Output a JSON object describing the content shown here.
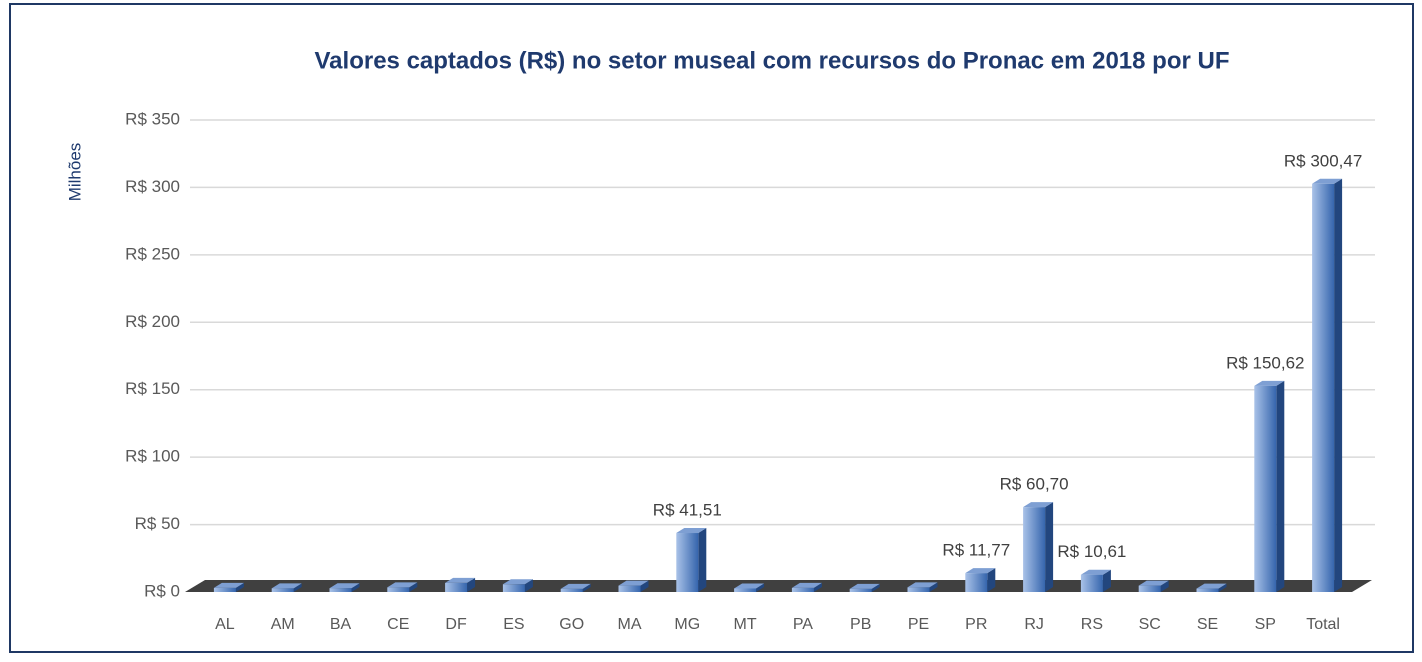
{
  "chart_data": {
    "type": "bar",
    "title": "Valores captados (R$) no setor museal com recursos do Pronac em 2018 por UF",
    "y_label": "Milhões",
    "categories": [
      "AL",
      "AM",
      "BA",
      "CE",
      "DF",
      "ES",
      "GO",
      "MA",
      "MG",
      "MT",
      "PA",
      "PB",
      "PE",
      "PR",
      "RJ",
      "RS",
      "SC",
      "SE",
      "SP",
      "Total"
    ],
    "values": [
      0.8,
      0.5,
      0.6,
      1.2,
      4.5,
      3.5,
      0.1,
      2.5,
      41.51,
      0.4,
      0.8,
      0.1,
      1.2,
      11.77,
      60.7,
      10.61,
      2.5,
      0.3,
      150.62,
      300.47
    ],
    "value_labels": [
      null,
      null,
      null,
      null,
      null,
      null,
      null,
      null,
      "R$ 41,51",
      null,
      null,
      null,
      null,
      "R$ 11,77",
      "R$ 60,70",
      "R$ 10,61",
      null,
      null,
      "R$ 150,62",
      "R$ 300,47"
    ],
    "color": "#4a78bf",
    "ylim": [
      0,
      350
    ],
    "yticks": [
      {
        "value": 0,
        "label": "R$ 0"
      },
      {
        "value": 50,
        "label": "R$ 50"
      },
      {
        "value": 100,
        "label": "R$ 100"
      },
      {
        "value": 150,
        "label": "R$ 150"
      },
      {
        "value": 200,
        "label": "R$ 200"
      },
      {
        "value": 250,
        "label": "R$ 250"
      },
      {
        "value": 300,
        "label": "R$ 300"
      },
      {
        "value": 350,
        "label": "R$ 350"
      }
    ],
    "grid": true
  }
}
